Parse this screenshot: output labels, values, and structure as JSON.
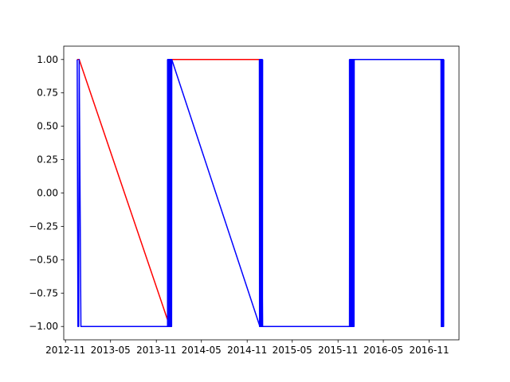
{
  "chart_data": {
    "type": "line",
    "title": "",
    "xlabel": "",
    "ylabel": "",
    "grid": false,
    "legend": "none",
    "xlim": [
      "2012-10-25",
      "2017-03-01"
    ],
    "ylim": [
      -1.1,
      1.1
    ],
    "x_ticks": [
      {
        "date": "2012-11-01",
        "label": "2012-11"
      },
      {
        "date": "2013-05-01",
        "label": "2013-05"
      },
      {
        "date": "2013-11-01",
        "label": "2013-11"
      },
      {
        "date": "2014-05-01",
        "label": "2014-05"
      },
      {
        "date": "2014-11-01",
        "label": "2014-11"
      },
      {
        "date": "2015-05-01",
        "label": "2015-05"
      },
      {
        "date": "2015-11-01",
        "label": "2015-11"
      },
      {
        "date": "2016-05-01",
        "label": "2016-05"
      },
      {
        "date": "2016-11-01",
        "label": "2016-11"
      }
    ],
    "y_ticks": [
      {
        "value": 1.0,
        "label": "1.00"
      },
      {
        "value": 0.75,
        "label": "0.75"
      },
      {
        "value": 0.5,
        "label": "0.50"
      },
      {
        "value": 0.25,
        "label": "0.25"
      },
      {
        "value": 0.0,
        "label": "0.00"
      },
      {
        "value": -0.25,
        "label": "−0.25"
      },
      {
        "value": -0.5,
        "label": "−0.50"
      },
      {
        "value": -0.75,
        "label": "−0.75"
      },
      {
        "value": -1.0,
        "label": "−1.00"
      }
    ],
    "series": [
      {
        "color": "#ff0000",
        "points": [
          [
            "2012-12-18",
            1
          ],
          [
            "2012-12-26",
            1
          ],
          [
            "2013-12-16",
            -0.95
          ],
          [
            "2013-12-17",
            1
          ],
          [
            "2014-12-24",
            1
          ],
          [
            "2014-12-25",
            -1
          ],
          [
            "2015-12-23",
            -1
          ],
          [
            "2015-12-24",
            1
          ],
          [
            "2016-12-26",
            1
          ],
          [
            "2016-12-27",
            -1
          ],
          [
            "2016-12-30",
            -1
          ]
        ],
        "oscillation_bands": []
      },
      {
        "color": "#0000ff",
        "points": [
          [
            "2012-12-18",
            1
          ],
          [
            "2012-12-21",
            -1
          ],
          [
            "2012-12-24",
            -1
          ],
          [
            "2012-12-26",
            1
          ],
          [
            "2013-01-02",
            -1
          ],
          [
            "2013-12-16",
            -1
          ],
          [
            "2013-12-17",
            1
          ],
          [
            "2014-01-02",
            1
          ],
          [
            "2014-12-22",
            -1
          ],
          [
            "2014-12-24",
            1
          ],
          [
            "2015-01-02",
            -1
          ],
          [
            "2015-12-17",
            -1
          ],
          [
            "2015-12-18",
            1
          ],
          [
            "2016-01-05",
            1
          ],
          [
            "2016-12-19",
            1
          ],
          [
            "2016-12-20",
            -1
          ],
          [
            "2016-12-30",
            -1
          ]
        ],
        "oscillation_bands": [
          {
            "start": "2013-12-16",
            "end": "2014-01-02",
            "cycles": 12
          },
          {
            "start": "2014-12-20",
            "end": "2015-01-02",
            "cycles": 10
          },
          {
            "start": "2015-12-17",
            "end": "2016-01-05",
            "cycles": 12
          },
          {
            "start": "2016-12-19",
            "end": "2016-12-30",
            "cycles": 7
          }
        ]
      }
    ]
  }
}
